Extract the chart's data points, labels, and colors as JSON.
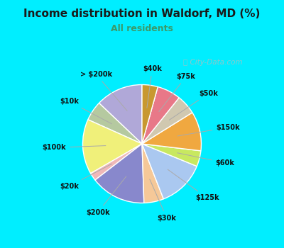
{
  "title": "Income distribution in Waldorf, MD (%)",
  "subtitle": "All residents",
  "title_color": "#1a1a1a",
  "subtitle_color": "#3a9a6a",
  "bg_cyan": "#00eeff",
  "bg_chart": "#e0f5ec",
  "watermark": "City-Data.com",
  "slices": [
    {
      "label": "> $200k",
      "value": 12,
      "color": "#b0a8d8"
    },
    {
      "label": "$10k",
      "value": 5,
      "color": "#b5c9a0"
    },
    {
      "label": "$100k",
      "value": 14,
      "color": "#f0f07a"
    },
    {
      "label": "$20k",
      "value": 2,
      "color": "#f0b8b8"
    },
    {
      "label": "$200k",
      "value": 14,
      "color": "#8888cc"
    },
    {
      "label": "$30k",
      "value": 5,
      "color": "#f5c898"
    },
    {
      "label": "$125k",
      "value": 12,
      "color": "#aac8f0"
    },
    {
      "label": "$60k",
      "value": 4,
      "color": "#c8e860"
    },
    {
      "label": "$150k",
      "value": 10,
      "color": "#f0a840"
    },
    {
      "label": "$50k",
      "value": 5,
      "color": "#d0c8b0"
    },
    {
      "label": "$75k",
      "value": 6,
      "color": "#e87888"
    },
    {
      "label": "$40k",
      "value": 4,
      "color": "#c89830"
    }
  ],
  "start_angle": 90,
  "title_fontsize": 11,
  "subtitle_fontsize": 9,
  "label_fontsize": 7,
  "wedge_edgecolor": "white",
  "wedge_linewidth": 1.0,
  "arrow_color": "#aaaaaa",
  "arrow_lw": 0.7
}
